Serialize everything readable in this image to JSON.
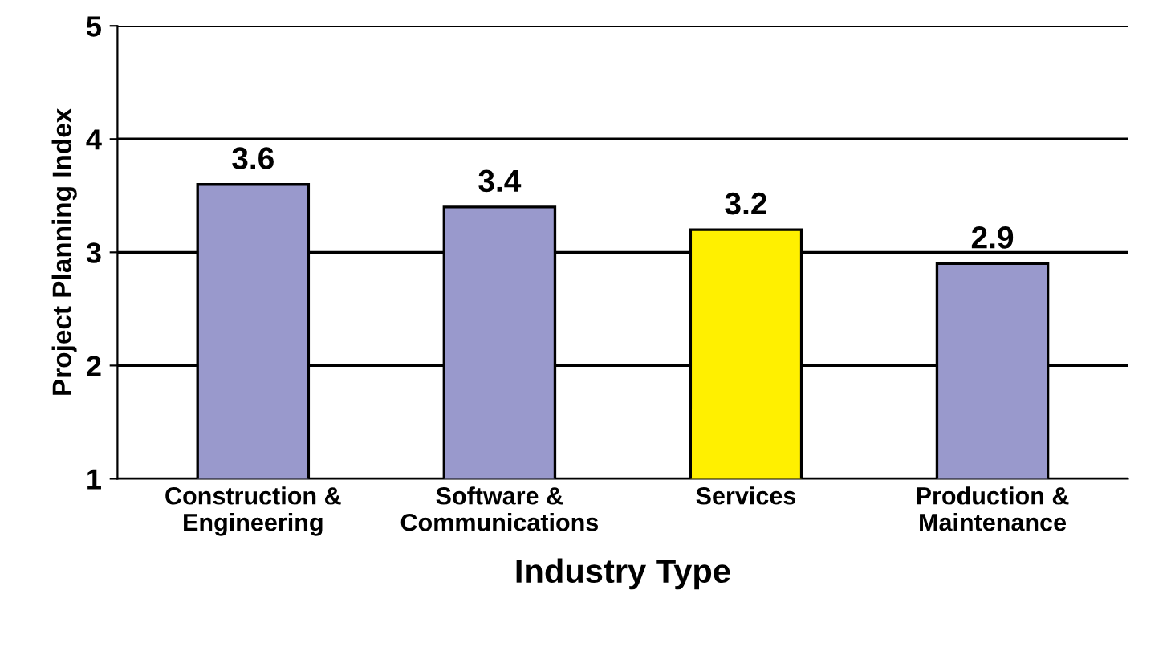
{
  "chart_data": {
    "type": "bar",
    "xlabel": "Industry Type",
    "ylabel": "Project Planning Index",
    "categories": [
      "Construction &\nEngineering",
      "Software &\nCommunications",
      "Services",
      "Production &\nMaintenance"
    ],
    "values": [
      3.6,
      3.4,
      3.2,
      2.9
    ],
    "colors": [
      "#9999cc",
      "#9999cc",
      "#fff000",
      "#9999cc"
    ],
    "ylim": [
      1,
      5
    ],
    "yticks": [
      1,
      2,
      3,
      4,
      5
    ],
    "grid": "y",
    "data_labels": true
  }
}
